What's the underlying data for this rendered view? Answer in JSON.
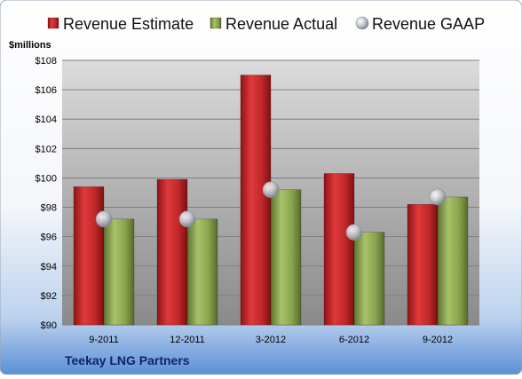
{
  "chart_data": {
    "type": "bar",
    "company": "Teekay LNG Partners",
    "ylabel": "$millions",
    "ylim": [
      90,
      108
    ],
    "yticks": [
      90,
      92,
      94,
      96,
      98,
      100,
      102,
      104,
      106,
      108
    ],
    "ytick_labels": [
      "$90",
      "$92",
      "$94",
      "$96",
      "$98",
      "$100",
      "$102",
      "$104",
      "$106",
      "$108"
    ],
    "categories": [
      "9-2011",
      "12-2011",
      "3-2012",
      "6-2012",
      "9-2012"
    ],
    "grid": true,
    "legend_position": "top",
    "series": [
      {
        "name": "Revenue Estimate",
        "kind": "bar",
        "color": "#c0282a",
        "values": [
          99.4,
          99.9,
          107.0,
          100.3,
          98.2
        ]
      },
      {
        "name": "Revenue Actual",
        "kind": "bar",
        "color": "#8aa44e",
        "values": [
          97.2,
          97.2,
          99.2,
          96.3,
          98.7
        ]
      },
      {
        "name": "Revenue GAAP",
        "kind": "marker",
        "color": "#b8bcc6",
        "values": [
          97.2,
          97.2,
          99.2,
          96.3,
          98.7
        ]
      }
    ]
  }
}
